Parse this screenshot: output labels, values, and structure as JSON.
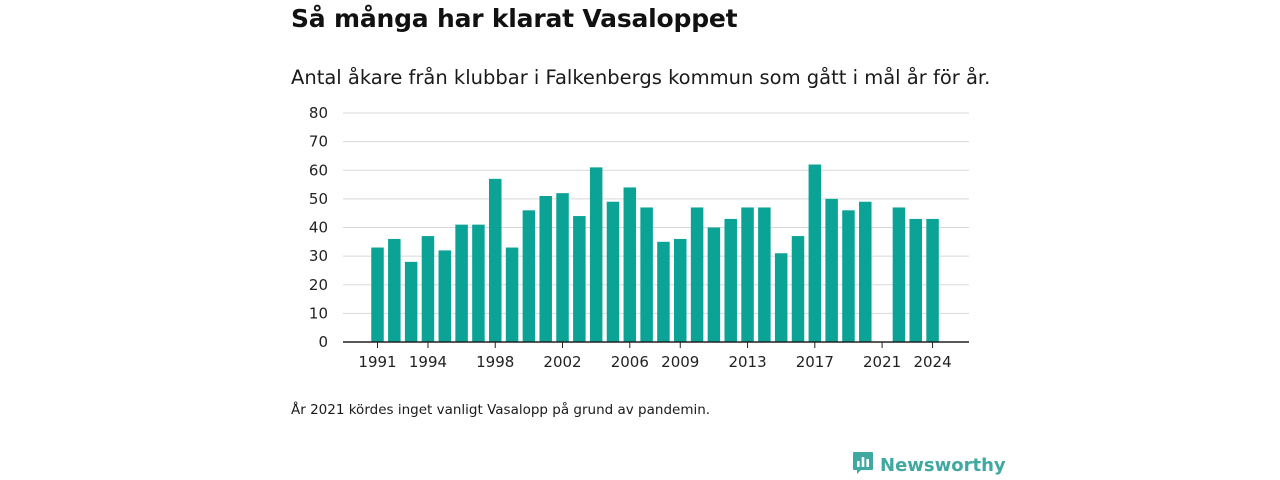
{
  "header": {
    "title": "Så många har klarat Vasaloppet",
    "subtitle": "Antal åkare från klubbar i Falkenbergs kommun som gått i mål år för år."
  },
  "footnote": "År 2021 kördes inget vanligt Vasalopp på grund av pandemin.",
  "brand": {
    "name": "Newsworthy",
    "icon": "newsworthy-logo-icon",
    "color": "#3fa8a0"
  },
  "colors": {
    "bar": "#0aa396",
    "grid": "#d8d8d8",
    "axis": "#222222"
  },
  "chart_data": {
    "type": "bar",
    "categories": [
      "1991",
      "1992",
      "1993",
      "1994",
      "1995",
      "1996",
      "1997",
      "1998",
      "1999",
      "2000",
      "2001",
      "2002",
      "2003",
      "2004",
      "2005",
      "2006",
      "2007",
      "2008",
      "2009",
      "2010",
      "2011",
      "2012",
      "2013",
      "2014",
      "2015",
      "2016",
      "2017",
      "2018",
      "2019",
      "2020",
      "2021",
      "2022",
      "2023",
      "2024"
    ],
    "values": [
      33,
      36,
      28,
      37,
      32,
      41,
      41,
      57,
      33,
      46,
      51,
      52,
      44,
      61,
      49,
      54,
      47,
      35,
      36,
      47,
      40,
      43,
      47,
      47,
      31,
      37,
      62,
      50,
      46,
      49,
      null,
      47,
      43,
      43
    ],
    "x_tick_labels": [
      "1991",
      "1994",
      "1998",
      "2002",
      "2006",
      "2009",
      "2013",
      "2017",
      "2021",
      "2024"
    ],
    "y_ticks": [
      0,
      10,
      20,
      30,
      40,
      50,
      60,
      70,
      80
    ],
    "ylim": [
      0,
      80
    ],
    "xlabel": "",
    "ylabel": "",
    "grid": true,
    "legend": "none"
  }
}
